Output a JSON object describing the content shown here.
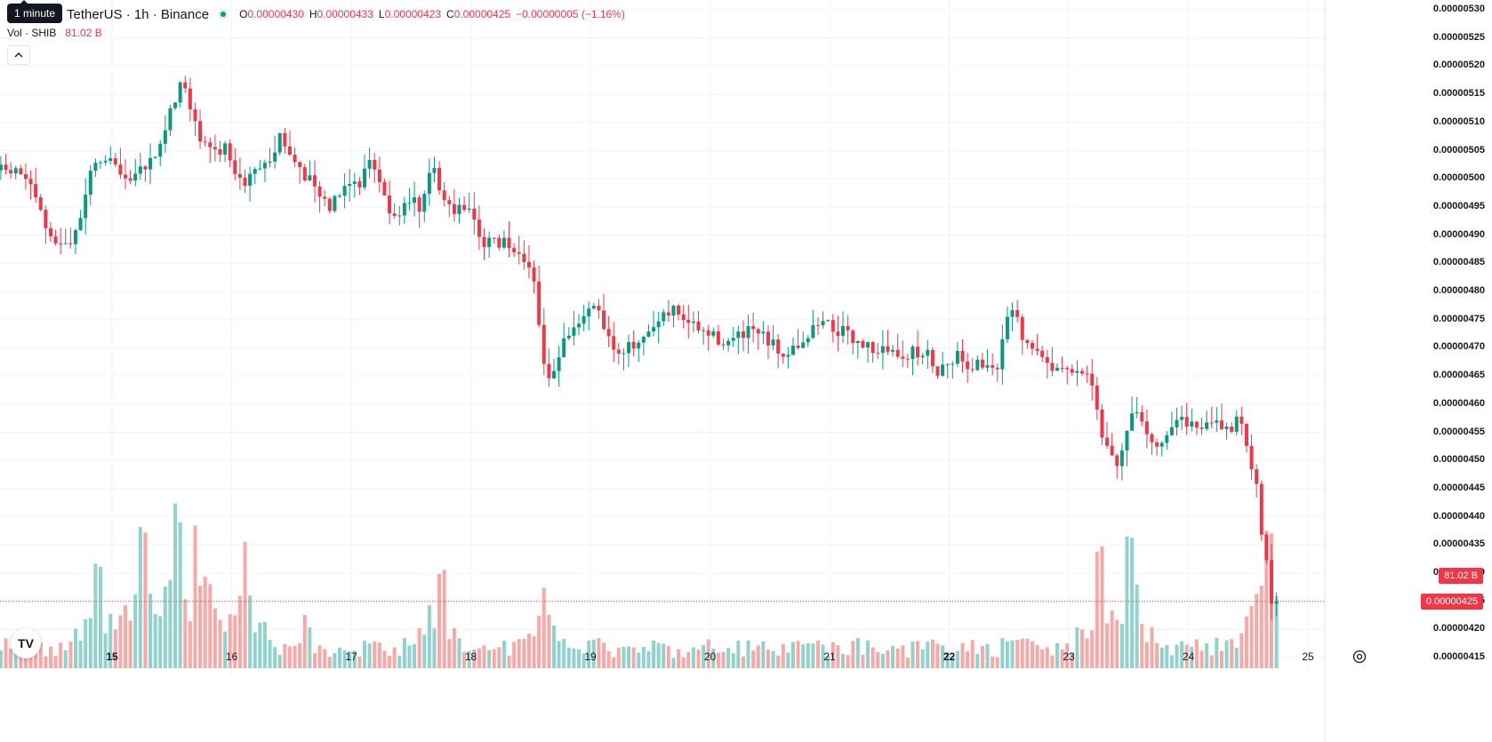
{
  "header": {
    "symbol": "TetherUS · 1h · Binance",
    "tooltip": "1 minute",
    "ohlc": [
      {
        "k": "O",
        "v": "0.00000430"
      },
      {
        "k": "H",
        "v": "0.00000433"
      },
      {
        "k": "L",
        "v": "0.00000423"
      },
      {
        "k": "C",
        "v": "0.00000425"
      }
    ],
    "change": "−0.00000005 (−1.16%)",
    "vol_label": "Vol · SHIB",
    "vol_value": "81.02 B"
  },
  "badges": {
    "volume": "81.02 B",
    "price": "0.00000425"
  },
  "colors": {
    "up": "#089981",
    "down": "#f23645",
    "up_vol": "#92d2cc",
    "down_vol": "#f7a9a7"
  },
  "chart_data": {
    "type": "candlestick",
    "interval": "1h",
    "y_ticks": [
      "0.00000530",
      "0.00000525",
      "0.00000520",
      "0.00000515",
      "0.00000510",
      "0.00000505",
      "0.00000500",
      "0.00000495",
      "0.00000490",
      "0.00000485",
      "0.00000480",
      "0.00000475",
      "0.00000470",
      "0.00000465",
      "0.00000460",
      "0.00000455",
      "0.00000450",
      "0.00000445",
      "0.00000440",
      "0.00000435",
      "0.00000430",
      "0.00000425",
      "0.00000420",
      "0.00000415"
    ],
    "ylim": [
      4.13e-06,
      5.31e-06
    ],
    "x_ticks": [
      {
        "label": "15",
        "day": 15,
        "bold": true
      },
      {
        "label": "16",
        "day": 16,
        "bold": false
      },
      {
        "label": "17",
        "day": 17,
        "bold": false
      },
      {
        "label": "18",
        "day": 18,
        "bold": false
      },
      {
        "label": "19",
        "day": 19,
        "bold": false
      },
      {
        "label": "20",
        "day": 20,
        "bold": false
      },
      {
        "label": "21",
        "day": 21,
        "bold": false
      },
      {
        "label": "22",
        "day": 22,
        "bold": true
      },
      {
        "label": "23",
        "day": 23,
        "bold": false
      },
      {
        "label": "24",
        "day": 24,
        "bold": false
      },
      {
        "label": "25",
        "day": 25,
        "bold": false
      }
    ],
    "xlim_days": [
      14.07,
      25.0
    ],
    "last_price": 4.25e-06,
    "keypoints": [
      {
        "d": 14.07,
        "p": 5.015e-06
      },
      {
        "d": 14.3,
        "p": 5.01e-06
      },
      {
        "d": 14.42,
        "p": 4.95e-06
      },
      {
        "d": 14.55,
        "p": 4.88e-06
      },
      {
        "d": 14.75,
        "p": 4.9e-06
      },
      {
        "d": 14.88,
        "p": 5.03e-06
      },
      {
        "d": 15.0,
        "p": 5.04e-06
      },
      {
        "d": 15.15,
        "p": 5e-06
      },
      {
        "d": 15.35,
        "p": 5.02e-06
      },
      {
        "d": 15.5,
        "p": 5.1e-06
      },
      {
        "d": 15.62,
        "p": 5.18e-06
      },
      {
        "d": 15.72,
        "p": 5.12e-06
      },
      {
        "d": 15.8,
        "p": 5.06e-06
      },
      {
        "d": 16.0,
        "p": 5.05e-06
      },
      {
        "d": 16.12,
        "p": 4.99e-06
      },
      {
        "d": 16.35,
        "p": 5.03e-06
      },
      {
        "d": 16.45,
        "p": 5.08e-06
      },
      {
        "d": 16.55,
        "p": 5.03e-06
      },
      {
        "d": 16.7,
        "p": 5e-06
      },
      {
        "d": 16.85,
        "p": 4.95e-06
      },
      {
        "d": 17.0,
        "p": 5e-06
      },
      {
        "d": 17.1,
        "p": 4.99e-06
      },
      {
        "d": 17.2,
        "p": 5.03e-06
      },
      {
        "d": 17.3,
        "p": 5e-06
      },
      {
        "d": 17.35,
        "p": 4.94e-06
      },
      {
        "d": 17.45,
        "p": 4.94e-06
      },
      {
        "d": 17.55,
        "p": 4.97e-06
      },
      {
        "d": 17.62,
        "p": 4.93e-06
      },
      {
        "d": 17.72,
        "p": 5.03e-06
      },
      {
        "d": 17.8,
        "p": 4.96e-06
      },
      {
        "d": 17.9,
        "p": 4.94e-06
      },
      {
        "d": 18.0,
        "p": 4.96e-06
      },
      {
        "d": 18.05,
        "p": 4.93e-06
      },
      {
        "d": 18.12,
        "p": 4.88e-06
      },
      {
        "d": 18.3,
        "p": 4.89e-06
      },
      {
        "d": 18.45,
        "p": 4.86e-06
      },
      {
        "d": 18.55,
        "p": 4.83e-06
      },
      {
        "d": 18.6,
        "p": 4.77e-06
      },
      {
        "d": 18.67,
        "p": 4.65e-06
      },
      {
        "d": 18.75,
        "p": 4.66e-06
      },
      {
        "d": 18.8,
        "p": 4.7e-06
      },
      {
        "d": 18.9,
        "p": 4.73e-06
      },
      {
        "d": 19.08,
        "p": 4.79e-06
      },
      {
        "d": 19.15,
        "p": 4.74e-06
      },
      {
        "d": 19.25,
        "p": 4.7e-06
      },
      {
        "d": 19.45,
        "p": 4.7e-06
      },
      {
        "d": 19.6,
        "p": 4.74e-06
      },
      {
        "d": 19.75,
        "p": 4.77e-06
      },
      {
        "d": 19.88,
        "p": 4.74e-06
      },
      {
        "d": 20.05,
        "p": 4.72e-06
      },
      {
        "d": 20.2,
        "p": 4.71e-06
      },
      {
        "d": 20.4,
        "p": 4.73e-06
      },
      {
        "d": 20.65,
        "p": 4.69e-06
      },
      {
        "d": 20.85,
        "p": 4.72e-06
      },
      {
        "d": 20.97,
        "p": 4.75e-06
      },
      {
        "d": 21.2,
        "p": 4.72e-06
      },
      {
        "d": 21.4,
        "p": 4.7e-06
      },
      {
        "d": 21.6,
        "p": 4.69e-06
      },
      {
        "d": 21.85,
        "p": 4.69e-06
      },
      {
        "d": 21.95,
        "p": 4.66e-06
      },
      {
        "d": 22.1,
        "p": 4.69e-06
      },
      {
        "d": 22.2,
        "p": 4.67e-06
      },
      {
        "d": 22.35,
        "p": 4.67e-06
      },
      {
        "d": 22.45,
        "p": 4.67e-06
      },
      {
        "d": 22.5,
        "p": 4.73e-06
      },
      {
        "d": 22.58,
        "p": 4.77e-06
      },
      {
        "d": 22.65,
        "p": 4.71e-06
      },
      {
        "d": 22.85,
        "p": 4.68e-06
      },
      {
        "d": 22.95,
        "p": 4.66e-06
      },
      {
        "d": 23.05,
        "p": 4.65e-06
      },
      {
        "d": 23.17,
        "p": 4.66e-06
      },
      {
        "d": 23.25,
        "p": 4.63e-06
      },
      {
        "d": 23.3,
        "p": 4.56e-06
      },
      {
        "d": 23.37,
        "p": 4.51e-06
      },
      {
        "d": 23.45,
        "p": 4.5e-06
      },
      {
        "d": 23.5,
        "p": 4.53e-06
      },
      {
        "d": 23.55,
        "p": 4.59e-06
      },
      {
        "d": 23.6,
        "p": 4.58e-06
      },
      {
        "d": 23.7,
        "p": 4.54e-06
      },
      {
        "d": 23.8,
        "p": 4.53e-06
      },
      {
        "d": 23.9,
        "p": 4.56e-06
      },
      {
        "d": 24.0,
        "p": 4.58e-06
      },
      {
        "d": 24.1,
        "p": 4.55e-06
      },
      {
        "d": 24.25,
        "p": 4.57e-06
      },
      {
        "d": 24.38,
        "p": 4.56e-06
      },
      {
        "d": 24.45,
        "p": 4.57e-06
      },
      {
        "d": 24.52,
        "p": 4.55e-06
      },
      {
        "d": 24.55,
        "p": 4.48e-06
      },
      {
        "d": 24.6,
        "p": 4.47e-06
      },
      {
        "d": 24.65,
        "p": 4.38e-06
      },
      {
        "d": 24.72,
        "p": 4.3e-06
      },
      {
        "d": 24.74,
        "p": 4.25e-06
      }
    ],
    "volume_peaks": [
      {
        "d": 14.8,
        "v": 0.3
      },
      {
        "d": 14.88,
        "v": 0.63
      },
      {
        "d": 15.25,
        "v": 0.88
      },
      {
        "d": 15.55,
        "v": 0.98
      },
      {
        "d": 15.7,
        "v": 0.9
      },
      {
        "d": 15.8,
        "v": 0.55
      },
      {
        "d": 16.1,
        "v": 0.76
      },
      {
        "d": 16.6,
        "v": 0.36
      },
      {
        "d": 17.65,
        "v": 0.4
      },
      {
        "d": 17.75,
        "v": 0.62
      },
      {
        "d": 18.62,
        "v": 0.5
      },
      {
        "d": 23.25,
        "v": 0.78
      },
      {
        "d": 23.5,
        "v": 0.78
      },
      {
        "d": 24.6,
        "v": 0.4
      },
      {
        "d": 24.68,
        "v": 0.88
      }
    ]
  }
}
